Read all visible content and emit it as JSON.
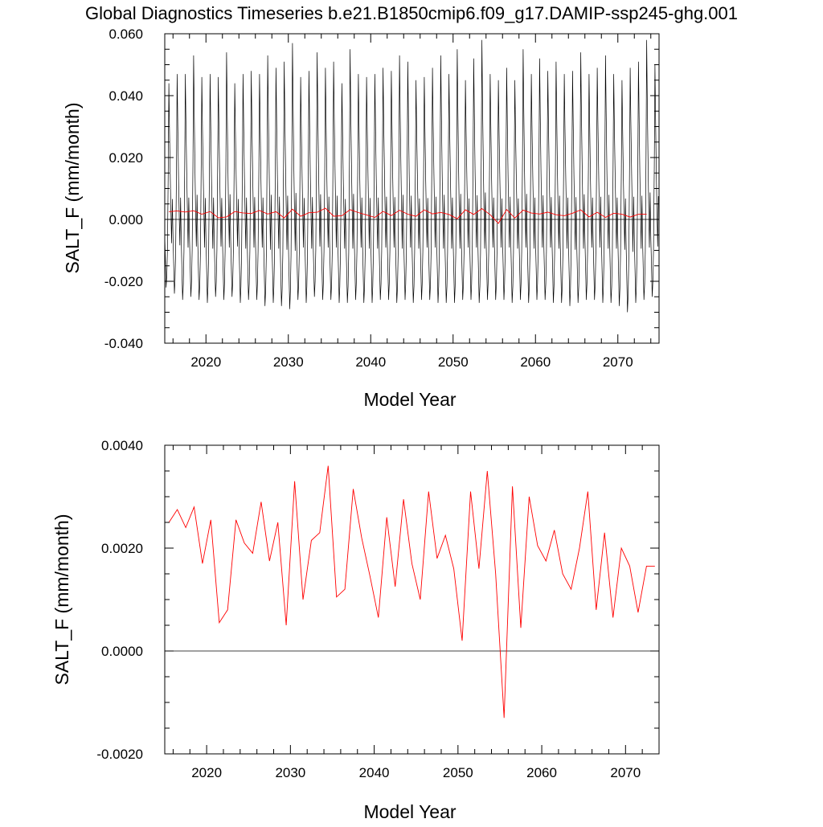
{
  "figure": {
    "title": "Global Diagnostics Timeseries b.e21.B1850cmip6.f09_g17.DAMIP-ssp245-ghg.001"
  },
  "colors": {
    "monthly_line": "#000000",
    "annual_line": "#ff0000",
    "frame": "#000000"
  },
  "chart_data": [
    {
      "type": "line",
      "xlabel": "Model Year",
      "ylabel": "SALT_F (mm/month)",
      "xlim": [
        2015,
        2075
      ],
      "ylim": [
        -0.04,
        0.06
      ],
      "xticks": [
        2020,
        2030,
        2040,
        2050,
        2060,
        2070
      ],
      "xtick_labels": [
        "2020",
        "2030",
        "2040",
        "2050",
        "2060",
        "2070"
      ],
      "yticks": [
        -0.04,
        -0.02,
        0.0,
        0.02,
        0.04,
        0.06
      ],
      "ytick_labels": [
        "-0.040",
        "-0.020",
        "0.000",
        "0.020",
        "0.040",
        "0.060"
      ],
      "zero_line": true,
      "grid": false,
      "series": [
        {
          "kind": "monthly",
          "color": "#000000",
          "start_year": 2015,
          "peaks": [
            0.044,
            0.047,
            0.047,
            0.053,
            0.046,
            0.047,
            0.046,
            0.054,
            0.044,
            0.047,
            0.048,
            0.047,
            0.053,
            0.049,
            0.051,
            0.057,
            0.046,
            0.048,
            0.054,
            0.049,
            0.051,
            0.044,
            0.055,
            0.047,
            0.046,
            0.047,
            0.049,
            0.048,
            0.053,
            0.051,
            0.045,
            0.046,
            0.049,
            0.053,
            0.047,
            0.055,
            0.045,
            0.052,
            0.058,
            0.047,
            0.045,
            0.049,
            0.045,
            0.055,
            0.047,
            0.052,
            0.048,
            0.051,
            0.047,
            0.048,
            0.054,
            0.047,
            0.049,
            0.053,
            0.047,
            0.045,
            0.049,
            0.051,
            0.058,
            0.05
          ],
          "troughs": [
            -0.022,
            -0.024,
            -0.026,
            -0.025,
            -0.026,
            -0.027,
            -0.025,
            -0.026,
            -0.025,
            -0.027,
            -0.026,
            -0.026,
            -0.028,
            -0.027,
            -0.028,
            -0.029,
            -0.026,
            -0.027,
            -0.025,
            -0.026,
            -0.026,
            -0.027,
            -0.027,
            -0.026,
            -0.027,
            -0.027,
            -0.026,
            -0.026,
            -0.027,
            -0.026,
            -0.027,
            -0.026,
            -0.026,
            -0.027,
            -0.027,
            -0.027,
            -0.026,
            -0.026,
            -0.027,
            -0.026,
            -0.026,
            -0.026,
            -0.027,
            -0.026,
            -0.027,
            -0.026,
            -0.026,
            -0.027,
            -0.027,
            -0.028,
            -0.027,
            -0.026,
            -0.026,
            -0.027,
            -0.027,
            -0.028,
            -0.03,
            -0.027,
            -0.026,
            -0.025
          ]
        },
        {
          "kind": "annual",
          "color": "#ff0000",
          "x": [
            2015.5,
            2016.5,
            2017.5,
            2018.5,
            2019.5,
            2020.5,
            2021.5,
            2022.5,
            2023.5,
            2024.5,
            2025.5,
            2026.5,
            2027.5,
            2028.5,
            2029.5,
            2030.5,
            2031.5,
            2032.5,
            2033.5,
            2034.5,
            2035.5,
            2036.5,
            2037.5,
            2038.5,
            2039.5,
            2040.5,
            2041.5,
            2042.5,
            2043.5,
            2044.5,
            2045.5,
            2046.5,
            2047.5,
            2048.5,
            2049.5,
            2050.5,
            2051.5,
            2052.5,
            2053.5,
            2054.5,
            2055.5,
            2056.5,
            2057.5,
            2058.5,
            2059.5,
            2060.5,
            2061.5,
            2062.5,
            2063.5,
            2064.5,
            2065.5,
            2066.5,
            2067.5,
            2068.5,
            2069.5,
            2070.5,
            2071.5,
            2072.5,
            2073.5
          ],
          "y": [
            0.0025,
            0.00275,
            0.0024,
            0.0028,
            0.0017,
            0.00255,
            0.00055,
            0.0008,
            0.00255,
            0.0021,
            0.0019,
            0.0029,
            0.00175,
            0.0025,
            0.0005,
            0.0033,
            0.001,
            0.00215,
            0.0023,
            0.0036,
            0.00105,
            0.0012,
            0.00315,
            0.0022,
            0.00145,
            0.00065,
            0.0026,
            0.00125,
            0.00295,
            0.0017,
            0.001,
            0.0031,
            0.0018,
            0.00225,
            0.0016,
            0.0002,
            0.0031,
            0.0016,
            0.0035,
            0.0015,
            -0.0013,
            0.0032,
            0.00045,
            0.003,
            0.00205,
            0.00175,
            0.00235,
            0.0015,
            0.0012,
            0.002,
            0.0031,
            0.0008,
            0.0023,
            0.00065,
            0.002,
            0.00165,
            0.00075,
            0.00165,
            0.00165
          ]
        }
      ]
    },
    {
      "type": "line",
      "xlabel": "Model Year",
      "ylabel": "SALT_F (mm/month)",
      "xlim": [
        2015,
        2074
      ],
      "ylim": [
        -0.002,
        0.004
      ],
      "xticks": [
        2020,
        2030,
        2040,
        2050,
        2060,
        2070
      ],
      "xtick_labels": [
        "2020",
        "2030",
        "2040",
        "2050",
        "2060",
        "2070"
      ],
      "yticks": [
        -0.002,
        0.0,
        0.002,
        0.004
      ],
      "ytick_labels": [
        "-0.0020",
        "0.0000",
        "0.0020",
        "0.0040"
      ],
      "zero_line": true,
      "grid": false,
      "series": [
        {
          "kind": "annual",
          "color": "#ff0000",
          "x": [
            2015.5,
            2016.5,
            2017.5,
            2018.5,
            2019.5,
            2020.5,
            2021.5,
            2022.5,
            2023.5,
            2024.5,
            2025.5,
            2026.5,
            2027.5,
            2028.5,
            2029.5,
            2030.5,
            2031.5,
            2032.5,
            2033.5,
            2034.5,
            2035.5,
            2036.5,
            2037.5,
            2038.5,
            2039.5,
            2040.5,
            2041.5,
            2042.5,
            2043.5,
            2044.5,
            2045.5,
            2046.5,
            2047.5,
            2048.5,
            2049.5,
            2050.5,
            2051.5,
            2052.5,
            2053.5,
            2054.5,
            2055.5,
            2056.5,
            2057.5,
            2058.5,
            2059.5,
            2060.5,
            2061.5,
            2062.5,
            2063.5,
            2064.5,
            2065.5,
            2066.5,
            2067.5,
            2068.5,
            2069.5,
            2070.5,
            2071.5,
            2072.5,
            2073.5
          ],
          "y": [
            0.0025,
            0.00275,
            0.0024,
            0.0028,
            0.0017,
            0.00255,
            0.00055,
            0.0008,
            0.00255,
            0.0021,
            0.0019,
            0.0029,
            0.00175,
            0.0025,
            0.0005,
            0.0033,
            0.001,
            0.00215,
            0.0023,
            0.0036,
            0.00105,
            0.0012,
            0.00315,
            0.0022,
            0.00145,
            0.00065,
            0.0026,
            0.00125,
            0.00295,
            0.0017,
            0.001,
            0.0031,
            0.0018,
            0.00225,
            0.0016,
            0.0002,
            0.0031,
            0.0016,
            0.0035,
            0.0015,
            -0.0013,
            0.0032,
            0.00045,
            0.003,
            0.00205,
            0.00175,
            0.00235,
            0.0015,
            0.0012,
            0.002,
            0.0031,
            0.0008,
            0.0023,
            0.00065,
            0.002,
            0.00165,
            0.00075,
            0.00165,
            0.00165
          ]
        }
      ]
    }
  ]
}
